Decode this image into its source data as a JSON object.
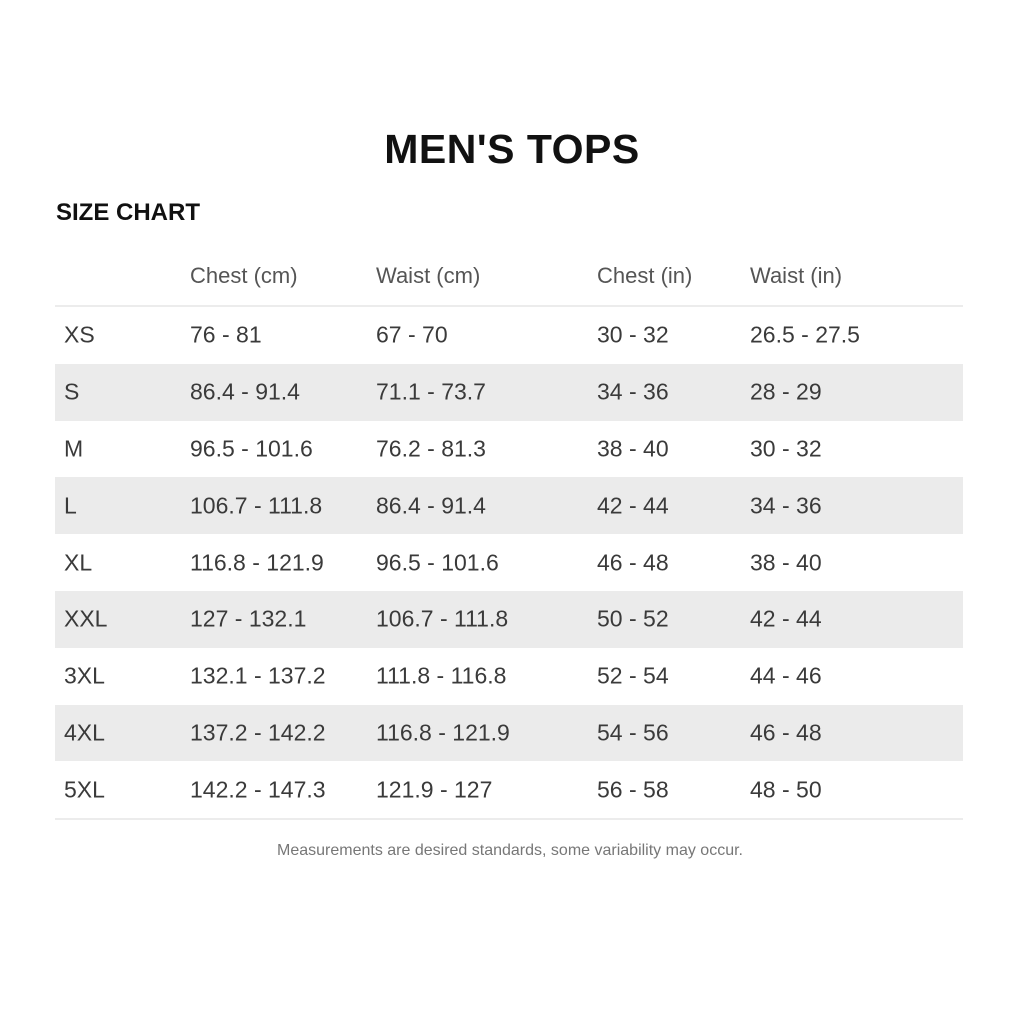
{
  "title": "MEN'S TOPS",
  "subtitle": "SIZE CHART",
  "table": {
    "headers": [
      "",
      "Chest (cm)",
      "Waist (cm)",
      "Chest (in)",
      "Waist (in)"
    ],
    "rows": [
      [
        "XS",
        "76 - 81",
        "67 - 70",
        "30 - 32",
        "26.5 - 27.5"
      ],
      [
        "S",
        "86.4 - 91.4",
        "71.1 - 73.7",
        "34 - 36",
        "28 - 29"
      ],
      [
        "M",
        "96.5 - 101.6",
        "76.2 - 81.3",
        "38 - 40",
        "30 - 32"
      ],
      [
        "L",
        "106.7 - 111.8",
        "86.4 - 91.4",
        "42 - 44",
        "34 - 36"
      ],
      [
        "XL",
        "116.8 - 121.9",
        "96.5 - 101.6",
        "46 - 48",
        "38 - 40"
      ],
      [
        "XXL",
        "127 - 132.1",
        "106.7 - 111.8",
        "50 - 52",
        "42 - 44"
      ],
      [
        "3XL",
        "132.1 - 137.2",
        "111.8 - 116.8",
        "52 - 54",
        "44 - 46"
      ],
      [
        "4XL",
        "137.2 - 142.2",
        "116.8 - 121.9",
        "54 - 56",
        "46 - 48"
      ],
      [
        "5XL",
        "142.2 - 147.3",
        "121.9 - 127",
        "56 - 58",
        "48 - 50"
      ]
    ]
  },
  "note": "Measurements are desired standards, some variability may occur.",
  "colors": {
    "stripe": "#ebebeb",
    "text": "#3a3a3a"
  }
}
